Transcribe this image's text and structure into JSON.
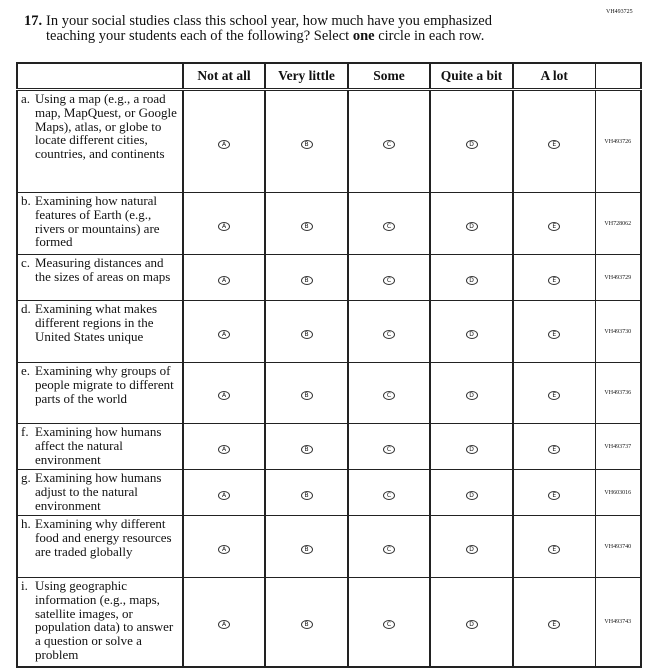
{
  "page_code": "VH493725",
  "question": {
    "number": "17.",
    "line1": "In your social studies class this school year, how much have you emphasized",
    "line2_pre": "teaching your students each of the following? Select ",
    "line2_bold": "one",
    "line2_post": " circle in each row."
  },
  "columns": [
    "Not at all",
    "Very little",
    "Some",
    "Quite a bit",
    "A lot"
  ],
  "bubble_letters": [
    "A",
    "B",
    "C",
    "D",
    "E"
  ],
  "rows": [
    {
      "letter": "a.",
      "text": "Using a map (e.g., a road map, MapQuest, or Google Maps), atlas, or globe to locate different cities, countries, and continents",
      "code": "VH493726"
    },
    {
      "letter": "b.",
      "text": "Examining how natural features of Earth (e.g., rivers or mountains) are formed",
      "code": "VH728062"
    },
    {
      "letter": "c.",
      "text": "Measuring distances and the sizes of areas on maps",
      "code": "VH493729"
    },
    {
      "letter": "d.",
      "text": "Examining what makes different regions in the United States unique",
      "code": "VH493730"
    },
    {
      "letter": "e.",
      "text": "Examining why groups of people migrate to different parts of the world",
      "code": "VH493736"
    },
    {
      "letter": "f.",
      "text": "Examining how humans affect the natural environment",
      "code": "VH493737"
    },
    {
      "letter": "g.",
      "text": "Examining how humans adjust to the natural environment",
      "code": "VH603016"
    },
    {
      "letter": "h.",
      "text": "Examining why different food and energy resources are traded globally",
      "code": "VH493740"
    },
    {
      "letter": "i.",
      "text": "Using geographic information (e.g., maps, satellite images, or population data) to answer a question or solve a problem",
      "code": "VH493743"
    }
  ]
}
